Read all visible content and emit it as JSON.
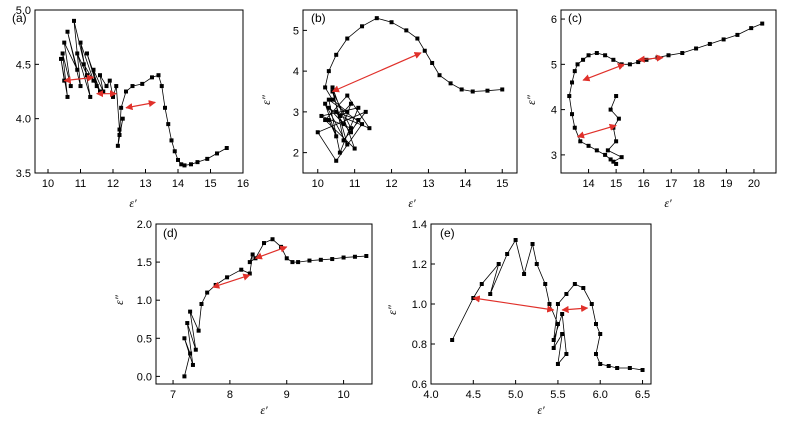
{
  "figure": {
    "accent_color": "#e0302a",
    "marker_color": "#000000"
  },
  "chart_data": [
    {
      "type": "scatter",
      "panel_label": "(a)",
      "xlabel": "ε′",
      "ylabel": "",
      "xlim": [
        9.6,
        16.0
      ],
      "ylim": [
        3.5,
        5.0
      ],
      "xticks": [
        10,
        11,
        12,
        13,
        14,
        15,
        16
      ],
      "yticks": [
        3.5,
        4.0,
        4.5,
        5.0
      ],
      "x": [
        10.5,
        10.4,
        10.6,
        10.45,
        10.7,
        10.5,
        10.9,
        10.6,
        11.0,
        10.8,
        11.2,
        10.9,
        11.3,
        11.0,
        11.4,
        11.1,
        11.6,
        11.2,
        11.5,
        11.4,
        11.7,
        11.6,
        11.8,
        11.9,
        12.0,
        12.1,
        12.2,
        12.15,
        12.3,
        12.2,
        12.25,
        12.4,
        12.6,
        12.9,
        13.2,
        13.4,
        13.5,
        13.6,
        13.7,
        13.8,
        13.9,
        14.0,
        14.1,
        14.2,
        14.4,
        14.6,
        14.9,
        15.2,
        15.5
      ],
      "y": [
        4.35,
        4.55,
        4.2,
        4.6,
        4.3,
        4.7,
        4.45,
        4.8,
        4.3,
        4.9,
        4.4,
        4.6,
        4.2,
        4.7,
        4.35,
        4.5,
        4.25,
        4.6,
        4.3,
        4.45,
        4.25,
        4.4,
        4.3,
        4.35,
        4.2,
        4.3,
        3.9,
        3.75,
        4.0,
        3.85,
        4.1,
        4.25,
        4.3,
        4.32,
        4.38,
        4.4,
        4.3,
        4.1,
        3.95,
        3.8,
        3.7,
        3.62,
        3.58,
        3.57,
        3.58,
        3.6,
        3.63,
        3.68,
        3.73
      ],
      "arrows": [
        {
          "x1": 10.5,
          "y1": 4.35,
          "x2": 11.4,
          "y2": 4.38
        },
        {
          "x1": 11.5,
          "y1": 4.23,
          "x2": 12.1,
          "y2": 4.23
        },
        {
          "x1": 12.4,
          "y1": 4.1,
          "x2": 13.3,
          "y2": 4.15
        }
      ]
    },
    {
      "type": "scatter",
      "panel_label": "(b)",
      "xlabel": "ε′",
      "ylabel": "ε″",
      "xlim": [
        9.6,
        15.4
      ],
      "ylim": [
        1.5,
        5.5
      ],
      "xticks": [
        10,
        11,
        12,
        13,
        14,
        15
      ],
      "yticks": [
        2,
        3,
        4,
        5
      ],
      "x": [
        10.3,
        10.5,
        10.2,
        10.8,
        10.4,
        10.9,
        10.1,
        11.1,
        10.6,
        10.3,
        11.2,
        10.5,
        10.0,
        11.3,
        10.7,
        10.4,
        11.0,
        10.2,
        10.8,
        11.4,
        10.6,
        10.3,
        10.9,
        11.1,
        10.5,
        10.7,
        10.9,
        10.6,
        10.8,
        10.4,
        10.2,
        10.3,
        10.5,
        10.8,
        11.2,
        11.6,
        12.0,
        12.4,
        12.7,
        12.9,
        13.1,
        13.3,
        13.6,
        13.9,
        14.2,
        14.6,
        15.0
      ],
      "y": [
        2.8,
        2.4,
        3.2,
        2.2,
        3.5,
        2.6,
        2.9,
        3.1,
        2.0,
        3.3,
        2.7,
        1.8,
        2.5,
        3.0,
        2.3,
        3.6,
        2.1,
        2.8,
        3.4,
        2.6,
        2.9,
        3.1,
        2.5,
        2.8,
        3.0,
        2.7,
        3.2,
        2.9,
        3.0,
        3.3,
        3.6,
        4.0,
        4.4,
        4.8,
        5.1,
        5.3,
        5.2,
        5.0,
        4.8,
        4.5,
        4.2,
        3.9,
        3.7,
        3.55,
        3.5,
        3.52,
        3.55
      ],
      "arrows": [
        {
          "x1": 10.4,
          "y1": 3.5,
          "x2": 12.8,
          "y2": 4.45
        }
      ]
    },
    {
      "type": "scatter",
      "panel_label": "(c)",
      "xlabel": "ε′",
      "ylabel": "ε″",
      "xlim": [
        13.0,
        20.8
      ],
      "ylim": [
        2.6,
        6.2
      ],
      "xticks": [
        14,
        15,
        16,
        17,
        18,
        19,
        20
      ],
      "yticks": [
        3,
        4,
        5,
        6
      ],
      "x": [
        15.0,
        14.8,
        15.1,
        14.9,
        15.0,
        14.7,
        15.2,
        14.9,
        15.0,
        14.8,
        14.6,
        14.3,
        14.0,
        13.7,
        13.5,
        13.4,
        13.3,
        13.4,
        13.5,
        13.6,
        13.8,
        14.0,
        14.3,
        14.6,
        14.9,
        15.2,
        15.5,
        15.8,
        16.1,
        16.5,
        16.9,
        17.4,
        17.9,
        18.4,
        18.9,
        19.4,
        19.9,
        20.3
      ],
      "y": [
        4.3,
        4.0,
        3.8,
        3.6,
        3.3,
        3.1,
        2.95,
        2.85,
        2.8,
        2.9,
        3.0,
        3.1,
        3.2,
        3.3,
        3.6,
        3.9,
        4.3,
        4.6,
        4.85,
        5.0,
        5.1,
        5.2,
        5.25,
        5.2,
        5.1,
        5.0,
        5.0,
        5.05,
        5.1,
        5.15,
        5.2,
        5.25,
        5.35,
        5.45,
        5.55,
        5.65,
        5.8,
        5.9
      ],
      "arrows": [
        {
          "x1": 13.8,
          "y1": 4.65,
          "x2": 15.3,
          "y2": 5.0
        },
        {
          "x1": 15.8,
          "y1": 5.1,
          "x2": 16.7,
          "y2": 5.15
        },
        {
          "x1": 13.6,
          "y1": 3.4,
          "x2": 15.0,
          "y2": 3.65
        }
      ]
    },
    {
      "type": "scatter",
      "panel_label": "(d)",
      "xlabel": "ε′",
      "ylabel": "ε″",
      "xlim": [
        6.7,
        10.5
      ],
      "ylim": [
        -0.1,
        2.0
      ],
      "xticks": [
        7,
        8,
        9,
        10
      ],
      "yticks": [
        0.0,
        0.5,
        1.0,
        1.5,
        2.0
      ],
      "x": [
        7.2,
        7.3,
        7.2,
        7.35,
        7.25,
        7.4,
        7.3,
        7.45,
        7.5,
        7.6,
        7.75,
        7.95,
        8.2,
        8.35,
        8.4,
        8.35,
        8.45,
        8.6,
        8.75,
        8.9,
        9.0,
        9.1,
        9.2,
        9.4,
        9.6,
        9.8,
        10.0,
        10.2,
        10.4
      ],
      "y": [
        0.0,
        0.3,
        0.5,
        0.15,
        0.7,
        0.35,
        0.85,
        0.6,
        0.95,
        1.1,
        1.2,
        1.3,
        1.4,
        1.35,
        1.6,
        1.5,
        1.55,
        1.75,
        1.8,
        1.7,
        1.55,
        1.5,
        1.5,
        1.52,
        1.53,
        1.54,
        1.56,
        1.57,
        1.58
      ],
      "arrows": [
        {
          "x1": 7.7,
          "y1": 1.17,
          "x2": 8.35,
          "y2": 1.33
        },
        {
          "x1": 8.45,
          "y1": 1.55,
          "x2": 9.0,
          "y2": 1.7
        }
      ]
    },
    {
      "type": "scatter",
      "panel_label": "(e)",
      "xlabel": "ε′",
      "ylabel": "ε″",
      "xlim": [
        4.0,
        6.6
      ],
      "ylim": [
        0.6,
        1.4
      ],
      "xticks": [
        4.0,
        4.5,
        5.0,
        5.5,
        6.0,
        6.5
      ],
      "yticks": [
        0.6,
        0.8,
        1.0,
        1.2,
        1.4
      ],
      "x": [
        4.25,
        4.5,
        4.6,
        4.8,
        4.7,
        4.9,
        5.0,
        5.1,
        5.2,
        5.25,
        5.35,
        5.4,
        5.5,
        5.45,
        5.55,
        5.5,
        5.6,
        5.55,
        5.45,
        5.5,
        5.6,
        5.7,
        5.8,
        5.9,
        5.95,
        6.0,
        5.95,
        6.0,
        6.1,
        6.2,
        6.35,
        6.5
      ],
      "y": [
        0.82,
        1.03,
        1.1,
        1.2,
        1.05,
        1.25,
        1.32,
        1.15,
        1.3,
        1.2,
        1.1,
        1.0,
        0.9,
        0.78,
        0.85,
        0.7,
        0.75,
        0.95,
        0.82,
        1.0,
        1.05,
        1.1,
        1.08,
        1.0,
        0.9,
        0.85,
        0.75,
        0.7,
        0.69,
        0.68,
        0.68,
        0.67
      ],
      "arrows": [
        {
          "x1": 4.5,
          "y1": 1.03,
          "x2": 5.45,
          "y2": 0.97
        },
        {
          "x1": 5.55,
          "y1": 0.97,
          "x2": 5.85,
          "y2": 0.98
        }
      ]
    }
  ]
}
